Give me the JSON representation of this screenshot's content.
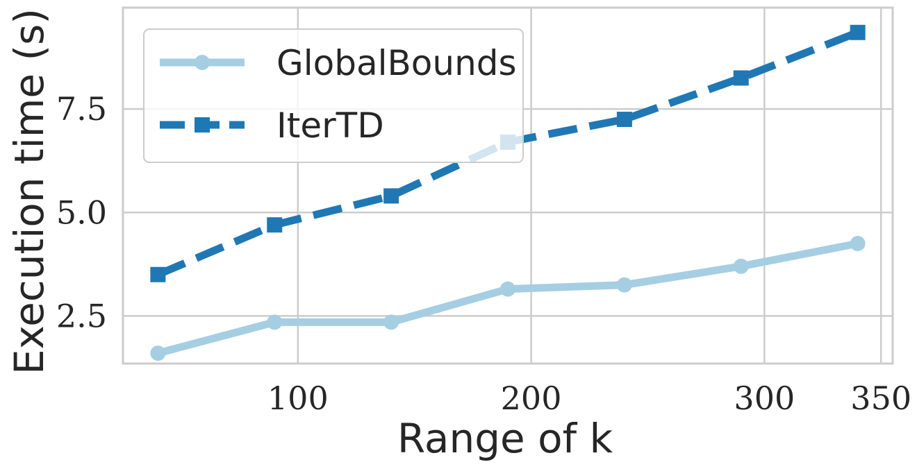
{
  "chart_data": {
    "type": "line",
    "title": "",
    "xlabel": "Range of k",
    "ylabel": "Execution time (s)",
    "xlim": [
      25,
      355
    ],
    "ylim": [
      1.35,
      9.95
    ],
    "xticks": [
      100,
      200,
      300,
      350
    ],
    "yticks": [
      2.5,
      5.0,
      7.5
    ],
    "ytick_labels": [
      "2.5",
      "5.0",
      "7.5"
    ],
    "grid": true,
    "legend_position": "top-left",
    "x": [
      40,
      90,
      140,
      190,
      240,
      290,
      340
    ],
    "series": [
      {
        "name": "GlobalBounds",
        "values": [
          1.6,
          2.35,
          2.35,
          3.15,
          3.25,
          3.7,
          4.25
        ],
        "color": "#a6cee3",
        "linestyle": "solid",
        "marker": "circle"
      },
      {
        "name": "IterTD",
        "values": [
          3.5,
          4.7,
          5.4,
          6.7,
          7.25,
          8.25,
          9.35
        ],
        "color": "#1f78b4",
        "linestyle": "dashed",
        "marker": "square"
      }
    ]
  }
}
